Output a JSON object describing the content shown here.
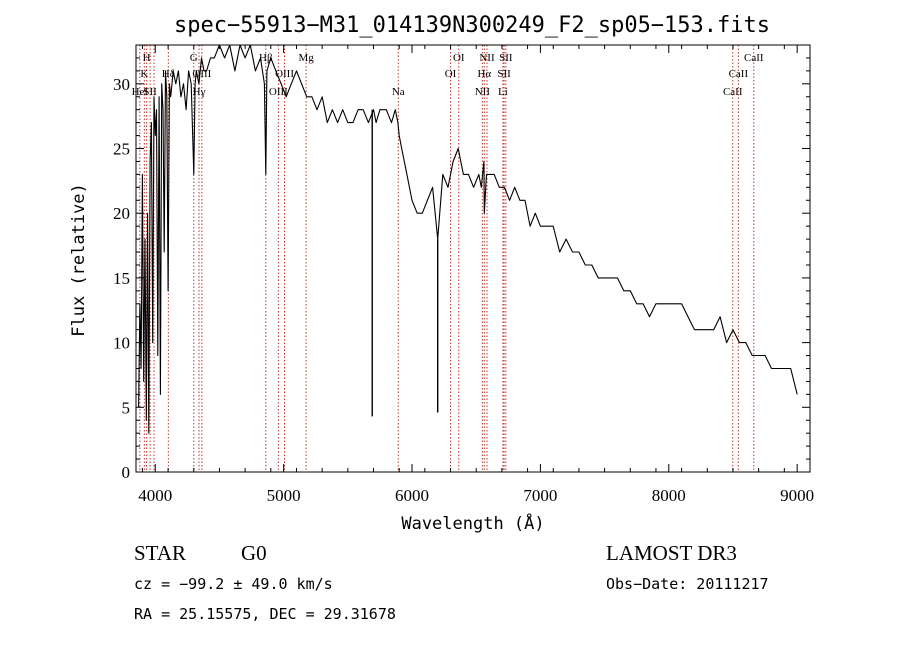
{
  "chart_data": {
    "type": "line",
    "title": "spec−55913−M31_014139N300249_F2_sp05−153.fits",
    "xlabel": "Wavelength (Å)",
    "ylabel": "Flux (relative)",
    "xlim": [
      3850,
      9100
    ],
    "ylim": [
      0,
      33
    ],
    "xticks": [
      {
        "value": 4000,
        "label": "4000"
      },
      {
        "value": 5000,
        "label": "5000"
      },
      {
        "value": 6000,
        "label": "6000"
      },
      {
        "value": 7000,
        "label": "7000"
      },
      {
        "value": 8000,
        "label": "8000"
      },
      {
        "value": 9000,
        "label": "9000"
      }
    ],
    "yticks": [
      {
        "value": 0,
        "label": "0"
      },
      {
        "value": 5,
        "label": "5"
      },
      {
        "value": 10,
        "label": "10"
      },
      {
        "value": 15,
        "label": "15"
      },
      {
        "value": 20,
        "label": "20"
      },
      {
        "value": 25,
        "label": "25"
      },
      {
        "value": 30,
        "label": "30"
      }
    ],
    "spectrum": {
      "x": [
        3870,
        3880,
        3890,
        3900,
        3910,
        3920,
        3930,
        3940,
        3950,
        3960,
        3970,
        3980,
        3990,
        4000,
        4010,
        4020,
        4030,
        4040,
        4050,
        4060,
        4070,
        4080,
        4090,
        4100,
        4110,
        4120,
        4140,
        4160,
        4180,
        4200,
        4220,
        4240,
        4260,
        4280,
        4300,
        4310,
        4320,
        4340,
        4360,
        4380,
        4400,
        4430,
        4460,
        4500,
        4540,
        4580,
        4620,
        4660,
        4700,
        4740,
        4780,
        4820,
        4850,
        4861,
        4870,
        4900,
        4940,
        4980,
        5020,
        5060,
        5100,
        5140,
        5180,
        5220,
        5260,
        5300,
        5340,
        5380,
        5420,
        5460,
        5500,
        5540,
        5580,
        5620,
        5660,
        5700,
        5720,
        5750,
        5800,
        5840,
        5870,
        5890,
        5900,
        5920,
        5960,
        6000,
        6040,
        6080,
        6120,
        6160,
        6200,
        6240,
        6280,
        6320,
        6360,
        6400,
        6440,
        6480,
        6520,
        6540,
        6560,
        6563,
        6580,
        6600,
        6640,
        6680,
        6720,
        6760,
        6800,
        6840,
        6880,
        6920,
        6960,
        7000,
        7050,
        7100,
        7150,
        7200,
        7250,
        7300,
        7350,
        7400,
        7450,
        7500,
        7550,
        7600,
        7650,
        7700,
        7750,
        7800,
        7850,
        7900,
        7950,
        8000,
        8050,
        8100,
        8150,
        8200,
        8250,
        8300,
        8350,
        8400,
        8450,
        8500,
        8550,
        8600,
        8650,
        8700,
        8750,
        8800,
        8850,
        8900,
        8950,
        9000
      ],
      "y": [
        5,
        13,
        8,
        23,
        7,
        18,
        4,
        20,
        3,
        24,
        27,
        10,
        29,
        26,
        28,
        9,
        29,
        6,
        30,
        28,
        17,
        31,
        29,
        14,
        30,
        29,
        31,
        30,
        31,
        29,
        30,
        28,
        31,
        30,
        23,
        30,
        31,
        30,
        32,
        31,
        31,
        32,
        32,
        33,
        32,
        33,
        31,
        33,
        32,
        33,
        31,
        32,
        30,
        23,
        31,
        32,
        31,
        30,
        29,
        30,
        31,
        30,
        29,
        29,
        28,
        29,
        27,
        28,
        27,
        28,
        27,
        27,
        28,
        28,
        27,
        28,
        27,
        28,
        28,
        27,
        28,
        27,
        26,
        25,
        23,
        21,
        20,
        20,
        21,
        22,
        18,
        23,
        22,
        24,
        25,
        23,
        23,
        22,
        23,
        22,
        24,
        20,
        23,
        23,
        23,
        22,
        22,
        21,
        22,
        21,
        21,
        19,
        20,
        19,
        19,
        19,
        17,
        18,
        17,
        17,
        16,
        16,
        15,
        15,
        15,
        15,
        14,
        14,
        13,
        13,
        12,
        13,
        13,
        13,
        13,
        13,
        12,
        11,
        11,
        11,
        11,
        12,
        10,
        11,
        10,
        10,
        9,
        9,
        9,
        8,
        8,
        8,
        8,
        6
      ]
    },
    "absorption_spikes": [
      {
        "x": 5690,
        "low": 4.3
      },
      {
        "x": 6200,
        "low": 4.6
      }
    ],
    "line_markers": [
      {
        "x": 3880,
        "labels": [
          "HeI"
        ],
        "row": 3
      },
      {
        "x": 3915,
        "labels": [
          "K"
        ],
        "row": 2
      },
      {
        "x": 3933,
        "labels": [
          "H"
        ],
        "row": 1
      },
      {
        "x": 3960,
        "labels": [
          "SII"
        ],
        "row": 3
      },
      {
        "x": 3990,
        "labels": [],
        "row": 0
      },
      {
        "x": 4102,
        "labels": [
          "Hδ"
        ],
        "row": 2
      },
      {
        "x": 4300,
        "labels": [
          "G"
        ],
        "row": 1
      },
      {
        "x": 4341,
        "labels": [
          "Hγ"
        ],
        "row": 3
      },
      {
        "x": 4363,
        "labels": [
          "OIII"
        ],
        "row": 2
      },
      {
        "x": 4861,
        "labels": [
          "Hβ"
        ],
        "row": 1
      },
      {
        "x": 4959,
        "labels": [
          "OIII"
        ],
        "row": 3
      },
      {
        "x": 5007,
        "labels": [
          "OIII"
        ],
        "row": 2
      },
      {
        "x": 5175,
        "labels": [
          "Mg"
        ],
        "row": 1
      },
      {
        "x": 5893,
        "labels": [
          "Na"
        ],
        "row": 3
      },
      {
        "x": 6300,
        "labels": [
          "OI"
        ],
        "row": 2
      },
      {
        "x": 6364,
        "labels": [
          "OI"
        ],
        "row": 1
      },
      {
        "x": 6548,
        "labels": [
          "NII"
        ],
        "row": 3
      },
      {
        "x": 6563,
        "labels": [
          "Hα"
        ],
        "row": 2
      },
      {
        "x": 6584,
        "labels": [
          "NII"
        ],
        "row": 1
      },
      {
        "x": 6708,
        "labels": [
          "Li"
        ],
        "row": 3
      },
      {
        "x": 6717,
        "labels": [
          "SII"
        ],
        "row": 2
      },
      {
        "x": 6731,
        "labels": [
          "SII"
        ],
        "row": 1
      },
      {
        "x": 8498,
        "labels": [
          "CaII"
        ],
        "row": 3
      },
      {
        "x": 8542,
        "labels": [
          "CaII"
        ],
        "row": 2
      },
      {
        "x": 8662,
        "labels": [
          "CaII"
        ],
        "row": 1
      }
    ]
  },
  "info": {
    "object_class": "STAR",
    "subclass": "G0",
    "survey": "LAMOST DR3",
    "cz_text": "cz = −99.2 ± 49.0 km/s",
    "obs_date_text": "Obs−Date: 20111217",
    "coords_text": "RA =  25.15575, DEC =  29.31678"
  }
}
